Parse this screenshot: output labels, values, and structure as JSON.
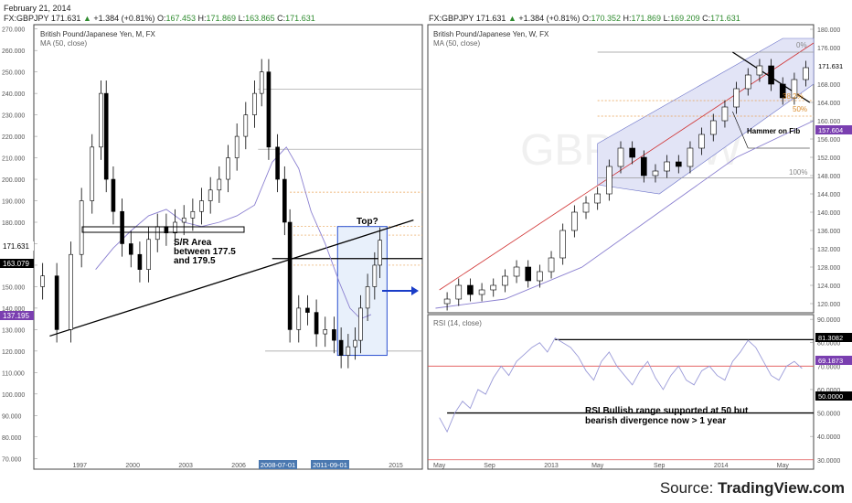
{
  "date": "February 21, 2014",
  "left": {
    "header": {
      "symbol": "FX:GBPJPY",
      "last": "171.631",
      "change": "+1.384 (+0.81%)",
      "o_label": "O:",
      "o": "167.453",
      "h_label": "H:",
      "h": "171.869",
      "l_label": "L:",
      "l": "163.865",
      "c_label": "C:",
      "c": "171.631"
    },
    "title": "British Pound/Japanese Yen, M, FX",
    "study": "MA (50, close)",
    "price_tag_last": "171.631",
    "price_tag_line": "163.079",
    "price_tag_ma": "137.195",
    "time_tag_1": "2008-07-01",
    "time_tag_2": "2011-09-01",
    "annotations": {
      "top": "Top?",
      "sr1": "S/R Area",
      "sr2": "between 177.5",
      "sr3": "and 179.5"
    }
  },
  "right": {
    "header": {
      "symbol": "FX:GBPJPY",
      "last": "171.631",
      "change": "+1.384 (+0.81%)",
      "o_label": "O:",
      "o": "170.352",
      "h_label": "H:",
      "h": "171.869",
      "l_label": "L:",
      "l": "169.209",
      "c_label": "C:",
      "c": "171.631"
    },
    "title": "British Pound/Japanese Yen, W, FX",
    "study": "MA (50, close)",
    "price_tag_last": "171.631",
    "price_tag_ma": "157.604",
    "fib": {
      "f0": "0%",
      "f38": "38.2%",
      "f50": "50%",
      "f100": "100%"
    },
    "annotations": {
      "hammer": "Hammer on Fib"
    },
    "rsi": {
      "title": "RSI (14, close)",
      "tag_high": "81.3082",
      "tag_last": "69.1873",
      "tag_mid": "50.0000",
      "note1": "RSI Bullish range supported at 50 but",
      "note2": "bearish divergence now > 1 year"
    }
  },
  "source": {
    "label": "Source: ",
    "brand": "TradingView.com"
  },
  "chart_data": [
    {
      "type": "candlestick",
      "title": "British Pound/Japanese Yen, M, FX",
      "y_ticks": [
        "270.000",
        "260.000",
        "250.000",
        "240.000",
        "230.000",
        "220.000",
        "210.000",
        "200.000",
        "190.000",
        "180.000",
        "170.000",
        "160.000",
        "150.000",
        "140.000",
        "130.000",
        "120.000",
        "110.000",
        "100.000",
        "90.000",
        "80.000",
        "70.000"
      ],
      "x_ticks": [
        "1997",
        "2000",
        "2003",
        "2006",
        "2008-07-01",
        "2011-09-01",
        "2015"
      ],
      "ylim": [
        65,
        272
      ],
      "xlim": [
        1994.5,
        2016.5
      ],
      "x": [
        1995.0,
        1995.8,
        1996.6,
        1997.2,
        1997.8,
        1998.3,
        1998.6,
        1999.0,
        1999.5,
        2000.0,
        2000.5,
        2001.0,
        2001.5,
        2002.0,
        2002.5,
        2003.0,
        2003.5,
        2004.0,
        2004.5,
        2005.0,
        2005.5,
        2006.0,
        2006.5,
        2007.0,
        2007.4,
        2007.8,
        2008.3,
        2008.7,
        2009.0,
        2009.5,
        2010.0,
        2010.5,
        2011.0,
        2011.5,
        2011.9,
        2012.3,
        2012.7,
        2013.0,
        2013.4,
        2013.8,
        2014.1
      ],
      "close": [
        155,
        130,
        165,
        190,
        215,
        240,
        200,
        185,
        170,
        165,
        158,
        172,
        178,
        175,
        180,
        182,
        185,
        190,
        195,
        200,
        210,
        220,
        230,
        240,
        250,
        215,
        200,
        180,
        130,
        140,
        138,
        128,
        130,
        125,
        118,
        122,
        125,
        140,
        150,
        160,
        171.6
      ],
      "ma50": {
        "x": [
          1998.0,
          1999.0,
          2000.0,
          2001.0,
          2002.0,
          2003.0,
          2004.0,
          2005.0,
          2006.0,
          2007.0,
          2007.5,
          2008.0,
          2008.8,
          2009.5,
          2010.2,
          2011.0,
          2011.8,
          2012.4,
          2013.0,
          2013.6
        ],
        "y": [
          158,
          168,
          176,
          183,
          186,
          180,
          178,
          180,
          183,
          188,
          198,
          208,
          215,
          205,
          185,
          170,
          152,
          140,
          135,
          137
        ]
      },
      "levels": [
        {
          "label": "S/R Area",
          "y_low": 177.5,
          "y_high": 179.5
        },
        {
          "y": 163.079
        },
        {
          "y": 242
        },
        {
          "y": 214
        },
        {
          "y": 120
        }
      ],
      "trendline": {
        "x": [
          1995.4,
          2016.0
        ],
        "y": [
          127,
          181
        ]
      },
      "annotations": [
        "Top?",
        "S/R Area between 177.5 and 179.5"
      ]
    },
    {
      "type": "candlestick",
      "title": "British Pound/Japanese Yen, W, FX",
      "y_ticks": [
        "180.000",
        "176.000",
        "172.000",
        "168.000",
        "164.000",
        "160.000",
        "156.000",
        "152.000",
        "148.000",
        "144.000",
        "140.000",
        "136.000",
        "132.000",
        "128.000",
        "124.000",
        "120.000"
      ],
      "x_ticks": [
        "May",
        "Sep",
        "2013",
        "May",
        "Sep",
        "2014",
        "May"
      ],
      "ylim": [
        118,
        181
      ],
      "xlim": [
        0,
        100
      ],
      "x": [
        5,
        8,
        11,
        14,
        17,
        20,
        23,
        26,
        29,
        32,
        35,
        38,
        41,
        44,
        47,
        50,
        53,
        56,
        59,
        62,
        65,
        68,
        71,
        74,
        77,
        80,
        83,
        86,
        89,
        92,
        95,
        98
      ],
      "close": [
        121,
        124,
        122,
        123,
        124,
        126,
        128,
        125,
        127,
        130,
        136,
        140,
        142,
        144,
        150,
        154,
        152,
        148,
        149,
        151,
        150,
        154,
        157,
        160,
        163,
        167,
        170,
        172,
        168,
        165,
        169,
        171.6
      ],
      "ma50": {
        "x": [
          2,
          20,
          40,
          60,
          80,
          100
        ],
        "y": [
          119,
          121,
          128,
          140,
          152,
          160
        ]
      },
      "fib_levels": [
        {
          "label": "0%",
          "y": 175
        },
        {
          "label": "38.2%",
          "y": 164.4
        },
        {
          "label": "50%",
          "y": 161
        },
        {
          "label": "100%",
          "y": 147.5
        }
      ],
      "annotations": [
        "Hammer on Fib"
      ]
    },
    {
      "type": "line",
      "title": "RSI (14, close)",
      "y_ticks": [
        "90.0000",
        "80.0000",
        "70.0000",
        "60.0000",
        "50.0000",
        "40.0000",
        "30.0000"
      ],
      "ylim": [
        26,
        92
      ],
      "xlim": [
        0,
        100
      ],
      "x": [
        3,
        5,
        7,
        9,
        11,
        13,
        15,
        17,
        19,
        21,
        23,
        25,
        27,
        29,
        31,
        33,
        35,
        37,
        39,
        41,
        43,
        45,
        47,
        49,
        51,
        53,
        55,
        57,
        59,
        61,
        63,
        65,
        67,
        69,
        71,
        73,
        75,
        77,
        79,
        81,
        83,
        85,
        87,
        89,
        91,
        93,
        95,
        97
      ],
      "y": [
        48,
        42,
        50,
        55,
        52,
        60,
        58,
        65,
        70,
        66,
        72,
        75,
        78,
        80,
        76,
        82,
        80,
        78,
        74,
        68,
        64,
        72,
        76,
        70,
        66,
        62,
        68,
        72,
        65,
        60,
        66,
        70,
        64,
        62,
        68,
        70,
        66,
        64,
        72,
        76,
        81,
        78,
        72,
        66,
        64,
        70,
        72,
        69
      ],
      "levels": [
        {
          "y": 81.3082
        },
        {
          "y": 70,
          "color": "#e05050"
        },
        {
          "y": 50
        },
        {
          "y": 30,
          "color": "#e05050"
        }
      ],
      "annotations": [
        "RSI Bullish range supported at 50 but bearish divergence now > 1 year"
      ]
    }
  ]
}
